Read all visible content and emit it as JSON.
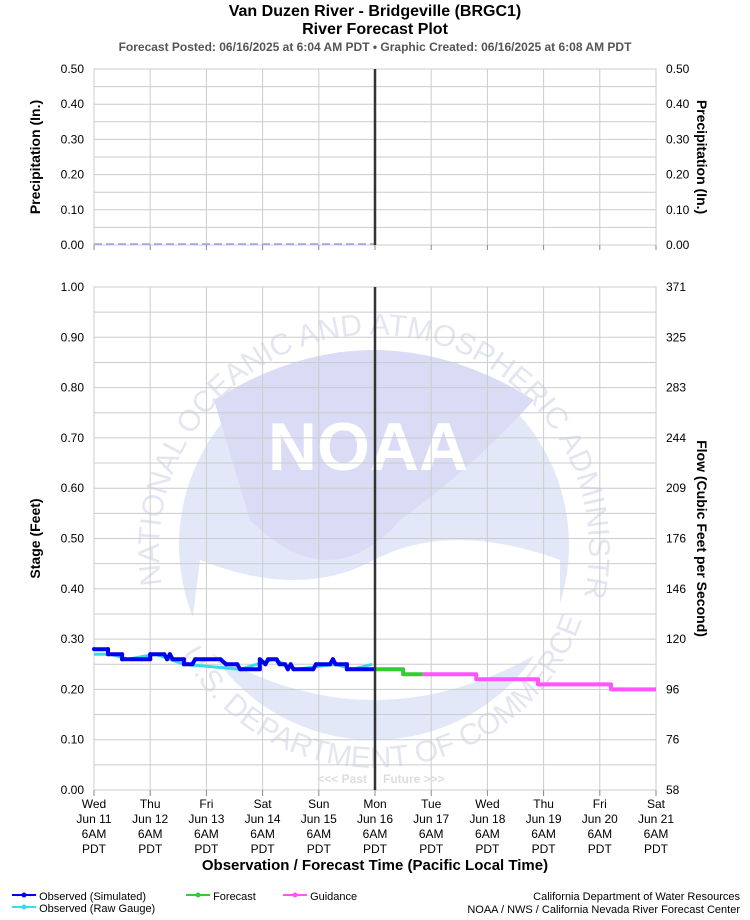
{
  "header": {
    "title": "Van Duzen River - Bridgeville (BRGC1)",
    "subtitle": "River Forecast Plot",
    "posted": "Forecast Posted: 06/16/2025 at 6:04 AM PDT  •  Graphic Created: 06/16/2025 at 6:08 AM PDT"
  },
  "watermark": {
    "ring_text_top": "NATIONAL OCEANIC AND ATMOSPHERIC ADMINISTRATION",
    "ring_text_bottom": "U.S. DEPARTMENT OF COMMERCE",
    "logo_text": "NOAA"
  },
  "colors": {
    "observed_simulated": "#0000ee",
    "observed_raw": "#33ddee",
    "forecast": "#33cc33",
    "guidance": "#ff55ff",
    "precip_line": "#9aa0ee",
    "now_line": "#333333",
    "grid": "#cccccc"
  },
  "chart_data": [
    {
      "type": "line",
      "name": "precipitation",
      "ylabel_left": "Precipitation (In.)",
      "ylabel_right": "Precipitation (In.)",
      "ylim": [
        0,
        0.5
      ],
      "yticks": [
        "0.50",
        "0.40",
        "0.30",
        "0.20",
        "0.10",
        "0.00"
      ],
      "series": [
        {
          "points": [
            [
              "Jun 11 6AM",
              0.0
            ],
            [
              "Jun 16 6AM",
              0.0
            ]
          ]
        }
      ]
    },
    {
      "type": "line",
      "name": "stage",
      "ylabel_left": "Stage (Feet)",
      "ylabel_right": "Flow (Cubic Feet per Second)",
      "xlabel": "Observation / Forecast Time (Pacific Local Time)",
      "ylim": [
        0,
        1.0
      ],
      "yticks_left": [
        "1.00",
        "0.90",
        "0.80",
        "0.70",
        "0.60",
        "0.50",
        "0.40",
        "0.30",
        "0.20",
        "0.10",
        "0.00"
      ],
      "yticks_right": [
        "371",
        "325",
        "283",
        "244",
        "209",
        "176",
        "146",
        "120",
        "96",
        "76",
        "58"
      ],
      "xticks": [
        [
          "Wed",
          "Jun 11",
          "6AM",
          "PDT"
        ],
        [
          "Thu",
          "Jun 12",
          "6AM",
          "PDT"
        ],
        [
          "Fri",
          "Jun 13",
          "6AM",
          "PDT"
        ],
        [
          "Sat",
          "Jun 14",
          "6AM",
          "PDT"
        ],
        [
          "Sun",
          "Jun 15",
          "6AM",
          "PDT"
        ],
        [
          "Mon",
          "Jun 16",
          "6AM",
          "PDT"
        ],
        [
          "Tue",
          "Jun 17",
          "6AM",
          "PDT"
        ],
        [
          "Wed",
          "Jun 18",
          "6AM",
          "PDT"
        ],
        [
          "Thu",
          "Jun 19",
          "6AM",
          "PDT"
        ],
        [
          "Fri",
          "Jun 20",
          "6AM",
          "PDT"
        ],
        [
          "Sat",
          "Jun 21",
          "6AM",
          "PDT"
        ]
      ],
      "past_label": "<<< Past",
      "future_label": "Future >>>",
      "series": [
        {
          "name": "Observed (Simulated)",
          "points": [
            [
              0.0,
              0.28
            ],
            [
              0.25,
              0.28
            ],
            [
              0.25,
              0.27
            ],
            [
              0.5,
              0.27
            ],
            [
              0.5,
              0.26
            ],
            [
              0.85,
              0.26
            ],
            [
              1.0,
              0.26
            ],
            [
              1.0,
              0.27
            ],
            [
              1.25,
              0.27
            ],
            [
              1.3,
              0.26
            ],
            [
              1.35,
              0.27
            ],
            [
              1.4,
              0.26
            ],
            [
              1.6,
              0.26
            ],
            [
              1.6,
              0.25
            ],
            [
              1.75,
              0.25
            ],
            [
              1.8,
              0.26
            ],
            [
              2.25,
              0.26
            ],
            [
              2.35,
              0.25
            ],
            [
              2.55,
              0.25
            ],
            [
              2.6,
              0.24
            ],
            [
              2.95,
              0.24
            ],
            [
              2.95,
              0.26
            ],
            [
              3.05,
              0.25
            ],
            [
              3.1,
              0.26
            ],
            [
              3.25,
              0.26
            ],
            [
              3.3,
              0.25
            ],
            [
              3.4,
              0.25
            ],
            [
              3.45,
              0.24
            ],
            [
              3.5,
              0.25
            ],
            [
              3.55,
              0.24
            ],
            [
              3.9,
              0.24
            ],
            [
              3.95,
              0.25
            ],
            [
              4.2,
              0.25
            ],
            [
              4.25,
              0.26
            ],
            [
              4.3,
              0.25
            ],
            [
              4.5,
              0.25
            ],
            [
              4.5,
              0.24
            ],
            [
              5.0,
              0.24
            ]
          ]
        },
        {
          "name": "Observed (Raw Gauge)",
          "points": [
            [
              0.0,
              0.27
            ],
            [
              0.3,
              0.27
            ],
            [
              0.6,
              0.26
            ],
            [
              1.1,
              0.27
            ],
            [
              1.6,
              0.25
            ],
            [
              2.6,
              0.24
            ],
            [
              3.2,
              0.26
            ],
            [
              3.6,
              0.24
            ],
            [
              4.3,
              0.25
            ],
            [
              4.6,
              0.24
            ],
            [
              4.95,
              0.25
            ]
          ]
        },
        {
          "name": "Forecast",
          "points": [
            [
              5.0,
              0.24
            ],
            [
              5.5,
              0.24
            ],
            [
              5.5,
              0.23
            ],
            [
              5.85,
              0.23
            ]
          ]
        },
        {
          "name": "Guidance",
          "points": [
            [
              5.85,
              0.23
            ],
            [
              6.8,
              0.23
            ],
            [
              6.8,
              0.22
            ],
            [
              7.9,
              0.22
            ],
            [
              7.9,
              0.21
            ],
            [
              9.2,
              0.21
            ],
            [
              9.2,
              0.2
            ],
            [
              10.0,
              0.2
            ]
          ]
        }
      ]
    }
  ],
  "legend": [
    {
      "label": "Observed (Simulated)",
      "color": "#0000ee"
    },
    {
      "label": "Observed (Raw Gauge)",
      "color": "#33ddee"
    },
    {
      "label": "Forecast",
      "color": "#33cc33"
    },
    {
      "label": "Guidance",
      "color": "#ff55ff"
    }
  ],
  "credits": {
    "line1": "California Department of Water Resources",
    "line2": "NOAA / NWS / California Nevada River Forecast Center"
  }
}
